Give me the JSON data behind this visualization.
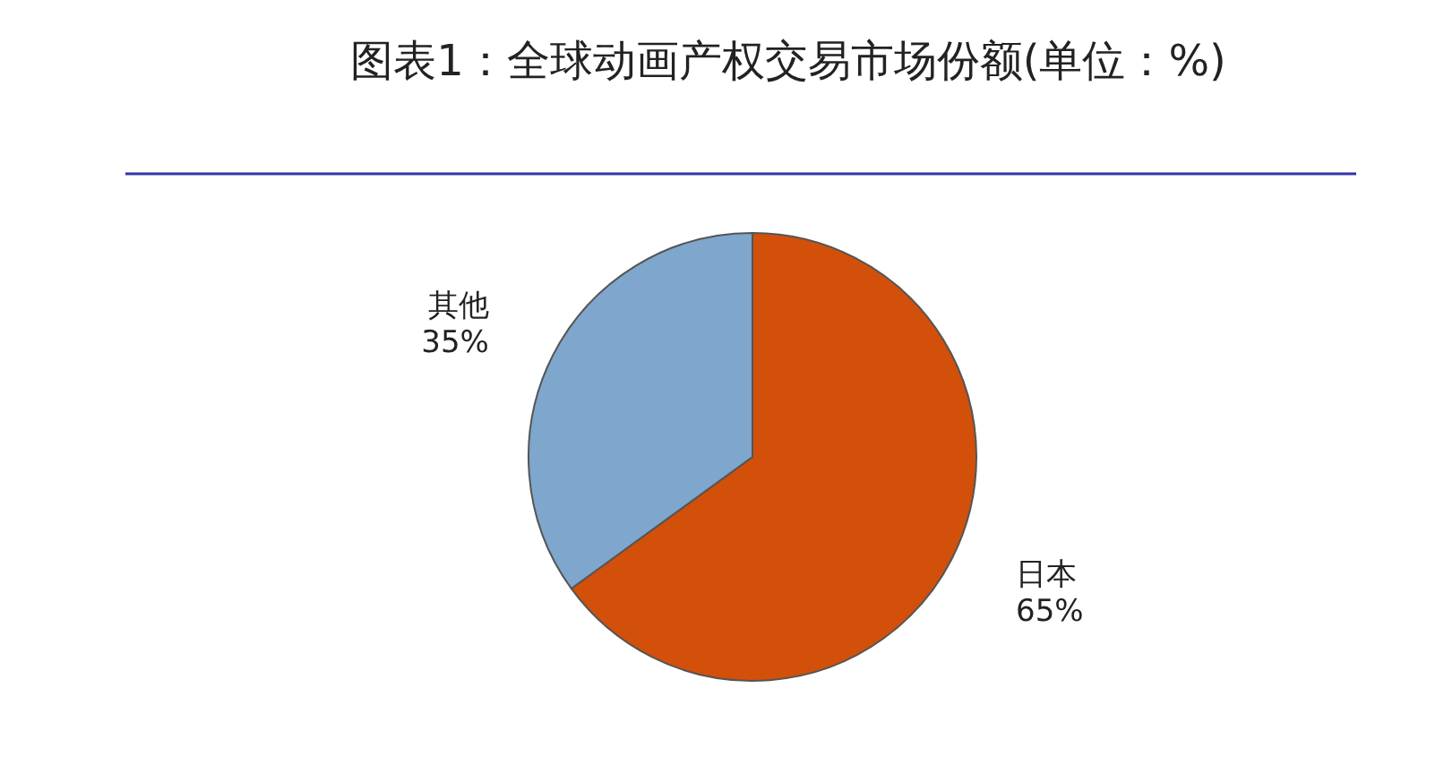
{
  "chart_data": {
    "type": "pie",
    "title": "图表1：全球动画产权交易市场份额(单位：%)",
    "categories": [
      "日本",
      "其他"
    ],
    "values": [
      65,
      35
    ],
    "colors": [
      "#d2500a",
      "#7fa6cc"
    ],
    "value_labels": [
      "65%",
      "35%"
    ],
    "legend": false
  }
}
